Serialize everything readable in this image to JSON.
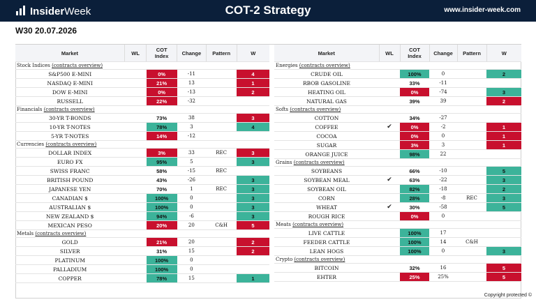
{
  "header": {
    "logo_insider": "Insider",
    "logo_week": "Week",
    "title": "COT-2 Strategy",
    "url": "www.insider-week.com"
  },
  "week_label": "W30 20.07.2026",
  "columns": {
    "market": "Market",
    "wl": "WL",
    "cot_line1": "COT",
    "cot_line2": "Index",
    "change": "Change",
    "pattern": "Pattern",
    "w": "W"
  },
  "colors": {
    "red": "#c8102e",
    "green": "#3cb39a",
    "navy": "#0b1f3a"
  },
  "left_table": [
    {
      "type": "cat",
      "name": "Stock Indices",
      "link": "(contracts overview)"
    },
    {
      "type": "row",
      "market": "S&P500 E-MINI",
      "wl": "",
      "cot": "0%",
      "cot_color": "red",
      "change": "-11",
      "pattern": "",
      "w": "4",
      "w_color": "red"
    },
    {
      "type": "row",
      "market": "NASDAQ E-MINI",
      "wl": "",
      "cot": "21%",
      "cot_color": "red",
      "change": "13",
      "pattern": "",
      "w": "1",
      "w_color": "red"
    },
    {
      "type": "row",
      "market": "DOW E-MINI",
      "wl": "",
      "cot": "0%",
      "cot_color": "red",
      "change": "-13",
      "pattern": "",
      "w": "2",
      "w_color": "red"
    },
    {
      "type": "row",
      "market": "RUSSELL",
      "wl": "",
      "cot": "22%",
      "cot_color": "red",
      "change": "-32",
      "pattern": "",
      "w": "",
      "w_color": ""
    },
    {
      "type": "cat",
      "name": "Financials",
      "link": "(contracts overview)"
    },
    {
      "type": "row",
      "market": "30-YR T-BONDS",
      "wl": "",
      "cot": "73%",
      "cot_color": "",
      "change": "38",
      "pattern": "",
      "w": "3",
      "w_color": "red"
    },
    {
      "type": "row",
      "market": "10-YR T-NOTES",
      "wl": "",
      "cot": "78%",
      "cot_color": "green",
      "change": "3",
      "pattern": "",
      "w": "4",
      "w_color": "green"
    },
    {
      "type": "row",
      "market": "5-YR T-NOTES",
      "wl": "",
      "cot": "14%",
      "cot_color": "red",
      "change": "-12",
      "pattern": "",
      "w": "",
      "w_color": ""
    },
    {
      "type": "cat",
      "name": "Currencies",
      "link": "(contracts overview)"
    },
    {
      "type": "row",
      "market": "DOLLAR INDEX",
      "wl": "",
      "cot": "3%",
      "cot_color": "red",
      "change": "33",
      "pattern": "REC",
      "w": "3",
      "w_color": "red"
    },
    {
      "type": "row",
      "market": "EURO FX",
      "wl": "",
      "cot": "95%",
      "cot_color": "green",
      "change": "5",
      "pattern": "",
      "w": "3",
      "w_color": "green"
    },
    {
      "type": "row",
      "market": "SWISS FRANC",
      "wl": "",
      "cot": "58%",
      "cot_color": "",
      "change": "-15",
      "pattern": "REC",
      "w": "",
      "w_color": ""
    },
    {
      "type": "row",
      "market": "BRITISH POUND",
      "wl": "",
      "cot": "43%",
      "cot_color": "",
      "change": "-26",
      "pattern": "",
      "w": "3",
      "w_color": "green"
    },
    {
      "type": "row",
      "market": "JAPANESE YEN",
      "wl": "",
      "cot": "70%",
      "cot_color": "",
      "change": "1",
      "pattern": "REC",
      "w": "3",
      "w_color": "green"
    },
    {
      "type": "row",
      "market": "CANADIAN $",
      "wl": "",
      "cot": "100%",
      "cot_color": "green",
      "change": "0",
      "pattern": "",
      "w": "3",
      "w_color": "green"
    },
    {
      "type": "row",
      "market": "AUSTRALIAN $",
      "wl": "",
      "cot": "100%",
      "cot_color": "green",
      "change": "0",
      "pattern": "",
      "w": "3",
      "w_color": "green"
    },
    {
      "type": "row",
      "market": "NEW ZEALAND $",
      "wl": "",
      "cot": "94%",
      "cot_color": "green",
      "change": "-6",
      "pattern": "",
      "w": "3",
      "w_color": "green"
    },
    {
      "type": "row",
      "market": "MEXICAN PESO",
      "wl": "",
      "cot": "20%",
      "cot_color": "red",
      "change": "20",
      "pattern": "C&H",
      "w": "5",
      "w_color": "red"
    },
    {
      "type": "cat",
      "name": "Metals",
      "link": "(contracts overview)"
    },
    {
      "type": "row",
      "market": "GOLD",
      "wl": "",
      "cot": "21%",
      "cot_color": "red",
      "change": "20",
      "pattern": "",
      "w": "2",
      "w_color": "red"
    },
    {
      "type": "row",
      "market": "SILVER",
      "wl": "",
      "cot": "31%",
      "cot_color": "",
      "change": "15",
      "pattern": "",
      "w": "2",
      "w_color": "red"
    },
    {
      "type": "row",
      "market": "PLATINUM",
      "wl": "",
      "cot": "100%",
      "cot_color": "green",
      "change": "0",
      "pattern": "",
      "w": "",
      "w_color": ""
    },
    {
      "type": "row",
      "market": "PALLADIUM",
      "wl": "",
      "cot": "100%",
      "cot_color": "green",
      "change": "0",
      "pattern": "",
      "w": "",
      "w_color": ""
    },
    {
      "type": "row",
      "market": "COPPER",
      "wl": "",
      "cot": "78%",
      "cot_color": "green",
      "change": "15",
      "pattern": "",
      "w": "1",
      "w_color": "green"
    }
  ],
  "right_table": [
    {
      "type": "cat",
      "name": "Energies",
      "link": "(contracts overview)"
    },
    {
      "type": "row",
      "market": "CRUDE OIL",
      "wl": "",
      "cot": "100%",
      "cot_color": "green",
      "change": "0",
      "pattern": "",
      "w": "2",
      "w_color": "green"
    },
    {
      "type": "row",
      "market": "RBOB GASOLINE",
      "wl": "",
      "cot": "33%",
      "cot_color": "",
      "change": "-11",
      "pattern": "",
      "w": "",
      "w_color": ""
    },
    {
      "type": "row",
      "market": "HEATING OIL",
      "wl": "",
      "cot": "0%",
      "cot_color": "red",
      "change": "-74",
      "pattern": "",
      "w": "3",
      "w_color": "green"
    },
    {
      "type": "row",
      "market": "NATURAL GAS",
      "wl": "",
      "cot": "39%",
      "cot_color": "",
      "change": "39",
      "pattern": "",
      "w": "2",
      "w_color": "red"
    },
    {
      "type": "cat",
      "name": "Softs",
      "link": "(contracts overview)"
    },
    {
      "type": "row",
      "market": "COTTON",
      "wl": "",
      "cot": "34%",
      "cot_color": "",
      "change": "-27",
      "pattern": "",
      "w": "",
      "w_color": ""
    },
    {
      "type": "row",
      "market": "COFFEE",
      "wl": "✔",
      "cot": "0%",
      "cot_color": "red",
      "change": "-2",
      "pattern": "",
      "w": "1",
      "w_color": "red"
    },
    {
      "type": "row",
      "market": "COCOA",
      "wl": "",
      "cot": "0%",
      "cot_color": "red",
      "change": "0",
      "pattern": "",
      "w": "1",
      "w_color": "red"
    },
    {
      "type": "row",
      "market": "SUGAR",
      "wl": "",
      "cot": "3%",
      "cot_color": "red",
      "change": "3",
      "pattern": "",
      "w": "1",
      "w_color": "red"
    },
    {
      "type": "row",
      "market": "ORANGE JUICE",
      "wl": "",
      "cot": "98%",
      "cot_color": "green",
      "change": "22",
      "pattern": "",
      "w": "",
      "w_color": ""
    },
    {
      "type": "cat",
      "name": "Grains",
      "link": "(contracts overview)"
    },
    {
      "type": "row",
      "market": "SOYBEANS",
      "wl": "",
      "cot": "66%",
      "cot_color": "",
      "change": "-10",
      "pattern": "",
      "w": "5",
      "w_color": "green"
    },
    {
      "type": "row",
      "market": "SOYBEAN MEAL",
      "wl": "✔",
      "cot": "63%",
      "cot_color": "",
      "change": "-22",
      "pattern": "",
      "w": "3",
      "w_color": "green"
    },
    {
      "type": "row",
      "market": "SOYBEAN OIL",
      "wl": "",
      "cot": "82%",
      "cot_color": "green",
      "change": "-18",
      "pattern": "",
      "w": "2",
      "w_color": "green"
    },
    {
      "type": "row",
      "market": "CORN",
      "wl": "",
      "cot": "28%",
      "cot_color": "green",
      "change": "-8",
      "pattern": "REC",
      "w": "3",
      "w_color": "green"
    },
    {
      "type": "row",
      "market": "WHEAT",
      "wl": "✔",
      "cot": "30%",
      "cot_color": "",
      "change": "-58",
      "pattern": "",
      "w": "5",
      "w_color": "green"
    },
    {
      "type": "row",
      "market": "ROUGH RICE",
      "wl": "",
      "cot": "0%",
      "cot_color": "red",
      "change": "0",
      "pattern": "",
      "w": "",
      "w_color": ""
    },
    {
      "type": "cat",
      "name": "Meats",
      "link": "(contracts overview)"
    },
    {
      "type": "row",
      "market": "LIVE CATTLE",
      "wl": "",
      "cot": "100%",
      "cot_color": "green",
      "change": "17",
      "pattern": "",
      "w": "",
      "w_color": ""
    },
    {
      "type": "row",
      "market": "FEEDER CATTLE",
      "wl": "",
      "cot": "100%",
      "cot_color": "green",
      "change": "14",
      "pattern": "C&H",
      "w": "",
      "w_color": ""
    },
    {
      "type": "row",
      "market": "LEAN HOGS",
      "wl": "",
      "cot": "100%",
      "cot_color": "green",
      "change": "0",
      "pattern": "",
      "w": "3",
      "w_color": "green"
    },
    {
      "type": "cat",
      "name": "Crypto",
      "link": "(contracts overview)"
    },
    {
      "type": "row",
      "market": "BITCOIN",
      "wl": "",
      "cot": "32%",
      "cot_color": "",
      "change": "16",
      "pattern": "",
      "w": "5",
      "w_color": "red"
    },
    {
      "type": "row",
      "market": "EHTER",
      "wl": "",
      "cot": "25%",
      "cot_color": "red",
      "change": "25%",
      "pattern": "",
      "w": "5",
      "w_color": "red"
    }
  ],
  "footer": {
    "copyright": "Copyright protected ©"
  }
}
